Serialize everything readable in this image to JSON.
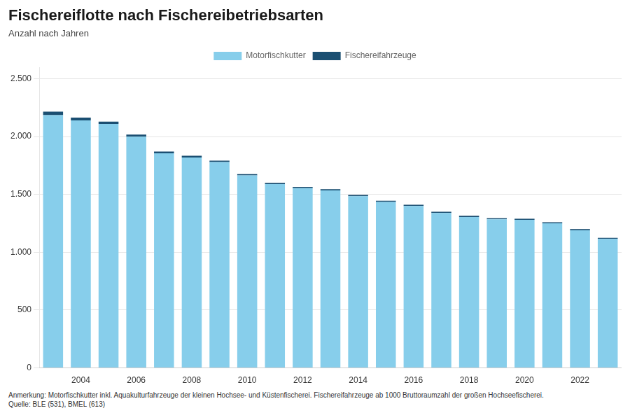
{
  "chart_data": {
    "type": "bar",
    "title": "Fischereiflotte nach Fischereibetriebsarten",
    "subtitle": "Anzahl nach Jahren",
    "categories": [
      null,
      "2004",
      null,
      "2006",
      null,
      "2008",
      null,
      "2010",
      null,
      "2012",
      null,
      "2014",
      null,
      "2016",
      null,
      "2018",
      null,
      "2020",
      null,
      "2022",
      null
    ],
    "series": [
      {
        "name": "Motorfischkutter",
        "color": "#87CEEB",
        "values": [
          2185,
          2140,
          2110,
          2000,
          1855,
          1820,
          1780,
          1665,
          1590,
          1555,
          1535,
          1485,
          1435,
          1400,
          1340,
          1305,
          1285,
          1280,
          1250,
          1190,
          1115
        ]
      },
      {
        "name": "Fischereifahrzeuge",
        "color": "#1B4F72",
        "values": [
          30,
          25,
          20,
          18,
          15,
          14,
          12,
          10,
          10,
          10,
          10,
          10,
          10,
          10,
          10,
          10,
          10,
          10,
          10,
          10,
          10
        ]
      }
    ],
    "stacked": true,
    "ylim": [
      0,
      2600
    ],
    "yticks": [
      0,
      500,
      {
        "value": 1000,
        "label": "1.000"
      },
      {
        "value": 1500,
        "label": "1.500"
      },
      {
        "value": 2000,
        "label": "2.000"
      },
      {
        "value": 2500,
        "label": "2.500"
      }
    ],
    "grid": true,
    "legend": "top",
    "annotations": [
      "Anmerkung: Motorfischkutter inkl. Aquakulturfahrzeuge der kleinen Hochsee- und Küstenfischerei. Fischereifahrzeuge ab 1000 Bruttoraumzahl der großen Hochseefischerei.",
      "Quelle: BLE (531), BMEL (613)"
    ]
  }
}
